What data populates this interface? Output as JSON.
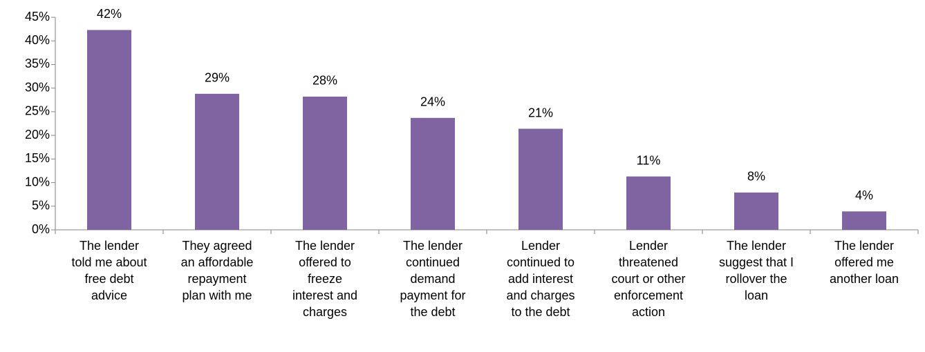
{
  "chart_data": {
    "type": "bar",
    "categories": [
      "The lender\ntold me about\nfree debt\nadvice",
      "They agreed\nan affordable\nrepayment\nplan with me",
      "The lender\noffered to\nfreeze\ninterest and\ncharges",
      "The lender\ncontinued\ndemand\npayment for\nthe debt",
      "Lender\ncontinued to\nadd interest\nand charges\nto the debt",
      "Lender\nthreatened\ncourt or other\nenforcement\naction",
      "The lender\nsuggest that I\nrollover the\nloan",
      "The lender\noffered me\nanother loan"
    ],
    "values": [
      42.3,
      28.8,
      28.2,
      23.7,
      21.4,
      11.3,
      7.9,
      3.9
    ],
    "value_labels": [
      "42%",
      "29%",
      "28%",
      "24%",
      "21%",
      "11%",
      "8%",
      "4%"
    ],
    "color": "#8064a2",
    "ylim": [
      0,
      45
    ],
    "yticks": [
      {
        "value": 0,
        "label": "0%"
      },
      {
        "value": 5,
        "label": "5%"
      },
      {
        "value": 10,
        "label": "10%"
      },
      {
        "value": 15,
        "label": "15%"
      },
      {
        "value": 20,
        "label": "20%"
      },
      {
        "value": 25,
        "label": "25%"
      },
      {
        "value": 30,
        "label": "30%"
      },
      {
        "value": 35,
        "label": "35%"
      },
      {
        "value": 40,
        "label": "40%"
      },
      {
        "value": 45,
        "label": "45%"
      }
    ]
  }
}
